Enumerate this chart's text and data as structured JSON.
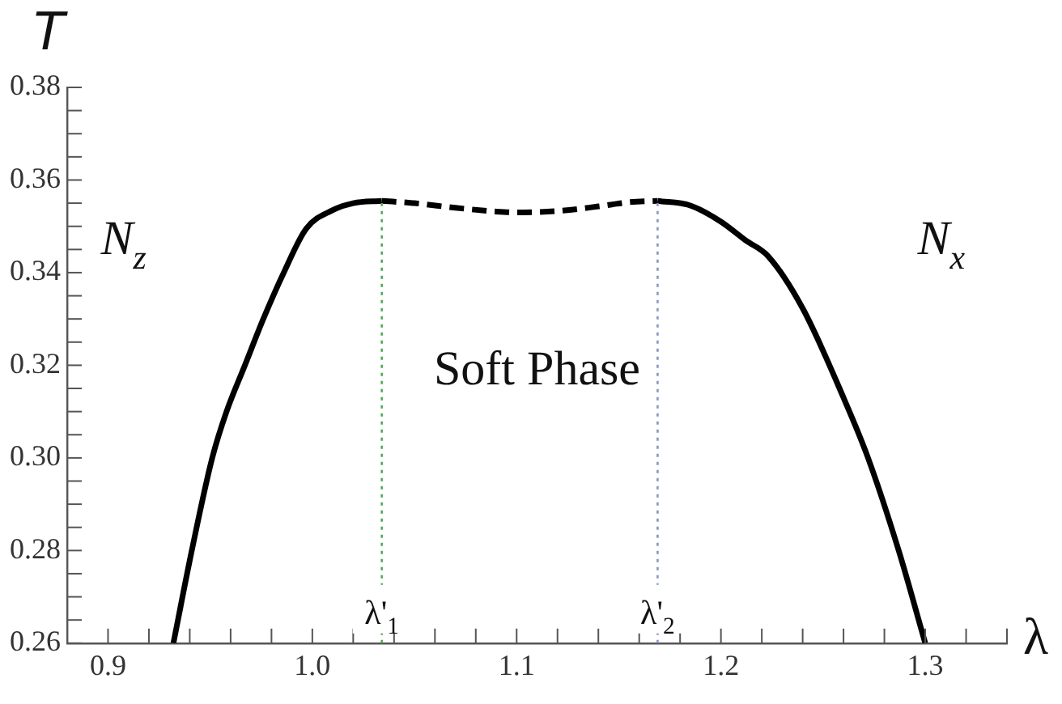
{
  "chart_data": {
    "type": "line",
    "xlabel": "λ",
    "ylabel": "T",
    "xlim": [
      0.88,
      1.34
    ],
    "ylim": [
      0.26,
      0.38
    ],
    "xticks": [
      {
        "value": 0.9,
        "label": "0.9"
      },
      {
        "value": 0.92,
        "label": null
      },
      {
        "value": 0.94,
        "label": null
      },
      {
        "value": 0.96,
        "label": null
      },
      {
        "value": 0.98,
        "label": null
      },
      {
        "value": 1.0,
        "label": "1.0"
      },
      {
        "value": 1.02,
        "label": null
      },
      {
        "value": 1.04,
        "label": null
      },
      {
        "value": 1.06,
        "label": null
      },
      {
        "value": 1.08,
        "label": null
      },
      {
        "value": 1.1,
        "label": "1.1"
      },
      {
        "value": 1.12,
        "label": null
      },
      {
        "value": 1.14,
        "label": null
      },
      {
        "value": 1.16,
        "label": null
      },
      {
        "value": 1.18,
        "label": null
      },
      {
        "value": 1.2,
        "label": "1.2"
      },
      {
        "value": 1.22,
        "label": null
      },
      {
        "value": 1.24,
        "label": null
      },
      {
        "value": 1.26,
        "label": null
      },
      {
        "value": 1.28,
        "label": null
      },
      {
        "value": 1.3,
        "label": "1.3"
      },
      {
        "value": 1.32,
        "label": null
      },
      {
        "value": 1.34,
        "label": null
      }
    ],
    "yticks": [
      {
        "value": 0.26,
        "label": "0.26"
      },
      {
        "value": 0.265,
        "label": null
      },
      {
        "value": 0.27,
        "label": null
      },
      {
        "value": 0.275,
        "label": null
      },
      {
        "value": 0.28,
        "label": "0.28"
      },
      {
        "value": 0.285,
        "label": null
      },
      {
        "value": 0.29,
        "label": null
      },
      {
        "value": 0.295,
        "label": null
      },
      {
        "value": 0.3,
        "label": "0.30"
      },
      {
        "value": 0.305,
        "label": null
      },
      {
        "value": 0.31,
        "label": null
      },
      {
        "value": 0.315,
        "label": null
      },
      {
        "value": 0.32,
        "label": "0.32"
      },
      {
        "value": 0.325,
        "label": null
      },
      {
        "value": 0.33,
        "label": null
      },
      {
        "value": 0.335,
        "label": null
      },
      {
        "value": 0.34,
        "label": "0.34"
      },
      {
        "value": 0.345,
        "label": null
      },
      {
        "value": 0.35,
        "label": null
      },
      {
        "value": 0.355,
        "label": null
      },
      {
        "value": 0.36,
        "label": "0.36"
      },
      {
        "value": 0.365,
        "label": null
      },
      {
        "value": 0.37,
        "label": null
      },
      {
        "value": 0.375,
        "label": null
      },
      {
        "value": 0.38,
        "label": "0.38"
      }
    ],
    "series": [
      {
        "color": "#000000",
        "line_style": "solid",
        "x": [
          0.932,
          0.941,
          0.951,
          0.958,
          0.967,
          0.976,
          0.986,
          0.997,
          1.01,
          1.02,
          1.034
        ],
        "values": [
          0.26,
          0.28,
          0.3,
          0.31,
          0.32,
          0.33,
          0.34,
          0.3495,
          0.3535,
          0.355,
          0.3555
        ]
      },
      {
        "color": "#000000",
        "line_style": "dashed",
        "x": [
          1.034,
          1.05,
          1.07,
          1.09,
          1.1,
          1.12,
          1.14,
          1.155,
          1.169
        ],
        "values": [
          0.3555,
          0.355,
          0.354,
          0.3532,
          0.353,
          0.3533,
          0.3543,
          0.3552,
          0.3555
        ]
      },
      {
        "color": "#000000",
        "line_style": "solid",
        "x": [
          1.169,
          1.185,
          1.2,
          1.212,
          1.223,
          1.24,
          1.26,
          1.272,
          1.287,
          1.3
        ],
        "values": [
          0.3555,
          0.3545,
          0.351,
          0.347,
          0.3436,
          0.3323,
          0.313,
          0.3,
          0.28,
          0.26
        ]
      }
    ],
    "ref_lines": [
      {
        "axis": "x",
        "value": 1.034,
        "label": "λ'$_{1}$",
        "color": "#55aa55",
        "line_style": "dotted"
      },
      {
        "axis": "x",
        "value": 1.169,
        "label": "λ'$_{2}$",
        "color": "#8896c4",
        "line_style": "dotted"
      }
    ],
    "annotations": [
      "N$_{z}$",
      "Soft Phase",
      "N$_{x}$"
    ],
    "legend": false,
    "grid": false
  }
}
